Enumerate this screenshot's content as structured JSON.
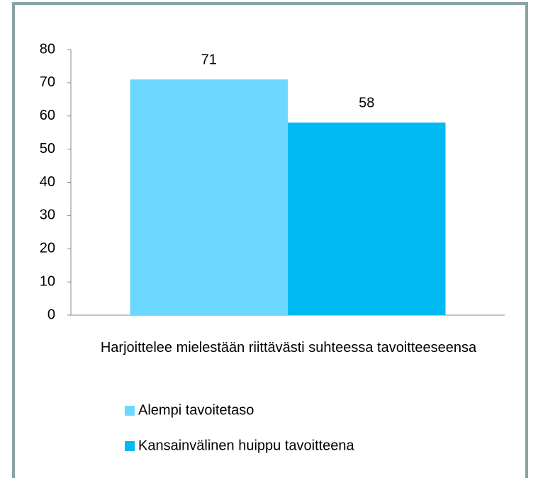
{
  "chart_data": {
    "type": "bar",
    "categories": [
      "Harjoittelee mielestään riittävästi suhteessa tavoitteeseensa"
    ],
    "series": [
      {
        "name": "Alempi tavoitetaso",
        "color": "#6dd8ff",
        "values": [
          71
        ]
      },
      {
        "name": "Kansainvälinen huippu tavoitteena",
        "color": "#00b9f2",
        "values": [
          58
        ]
      }
    ],
    "ylim": [
      0,
      80
    ],
    "yticks": [
      0,
      10,
      20,
      30,
      40,
      50,
      60,
      70,
      80
    ],
    "grid": false,
    "legend": "bottom"
  }
}
